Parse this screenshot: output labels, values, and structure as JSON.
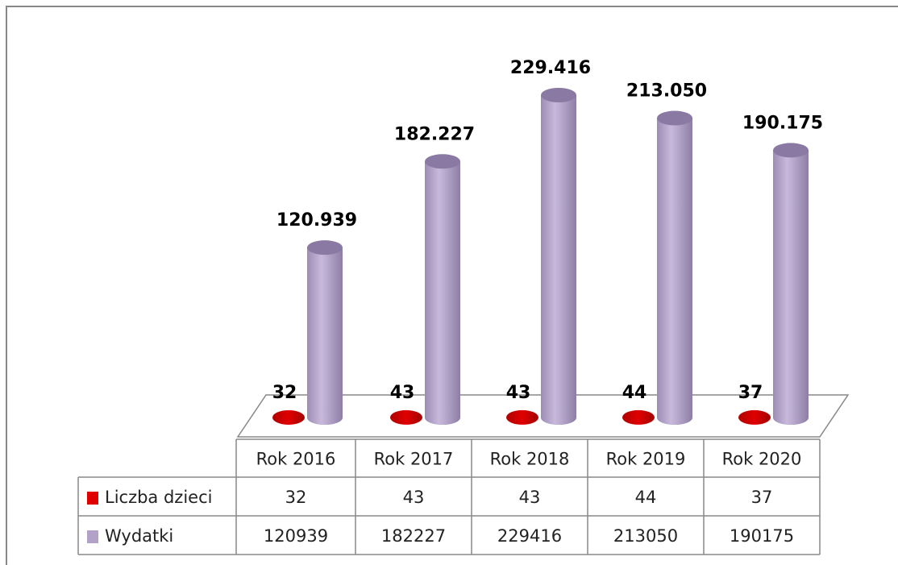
{
  "chart_data": {
    "type": "cylinder",
    "categories": [
      "Rok 2016",
      "Rok 2017",
      "Rok 2018",
      "Rok 2019",
      "Rok 2020"
    ],
    "series": [
      {
        "name": "Liczba dzieci",
        "color": "#e00000",
        "values": [
          32,
          43,
          43,
          44,
          37
        ]
      },
      {
        "name": "Wydatki",
        "color": "#b3a2c7",
        "values": [
          120939,
          182227,
          229416,
          213050,
          190175
        ],
        "value_labels": [
          "120.939",
          "182.227",
          "229.416",
          "213.050",
          "190.175"
        ]
      }
    ]
  }
}
